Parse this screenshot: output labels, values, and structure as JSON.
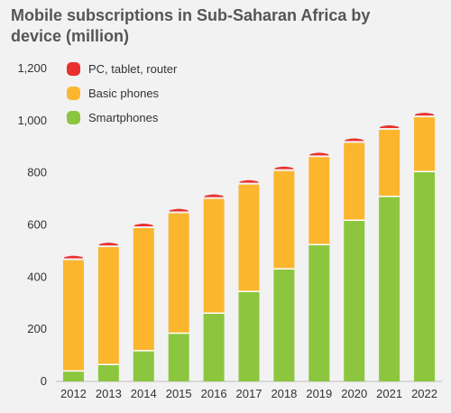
{
  "chart_data": {
    "type": "bar",
    "stacked": true,
    "title": "Mobile subscriptions in Sub-Saharan Africa by device (million)",
    "categories": [
      "2012",
      "2013",
      "2014",
      "2015",
      "2016",
      "2017",
      "2018",
      "2019",
      "2020",
      "2021",
      "2022"
    ],
    "series": [
      {
        "name": "Smartphones",
        "color": "#8cc63f",
        "values": [
          40,
          65,
          118,
          185,
          262,
          345,
          432,
          525,
          618,
          710,
          805
        ]
      },
      {
        "name": "Basic phones",
        "color": "#fbb62e",
        "values": [
          425,
          450,
          470,
          460,
          438,
          410,
          375,
          335,
          297,
          255,
          208
        ]
      },
      {
        "name": "PC, tablet, router",
        "color": "#e8312f",
        "values": [
          15,
          15,
          15,
          15,
          15,
          15,
          15,
          15,
          15,
          15,
          15
        ]
      }
    ],
    "legend": [
      "PC, tablet, router",
      "Basic phones",
      "Smartphones"
    ],
    "legend_position": "top-left",
    "ylim": [
      0,
      1200
    ],
    "yticks": [
      "0",
      "200",
      "400",
      "600",
      "800",
      "1,000",
      "1,200"
    ],
    "ytick_values": [
      0,
      200,
      400,
      600,
      800,
      1000,
      1200
    ],
    "grid": false
  }
}
